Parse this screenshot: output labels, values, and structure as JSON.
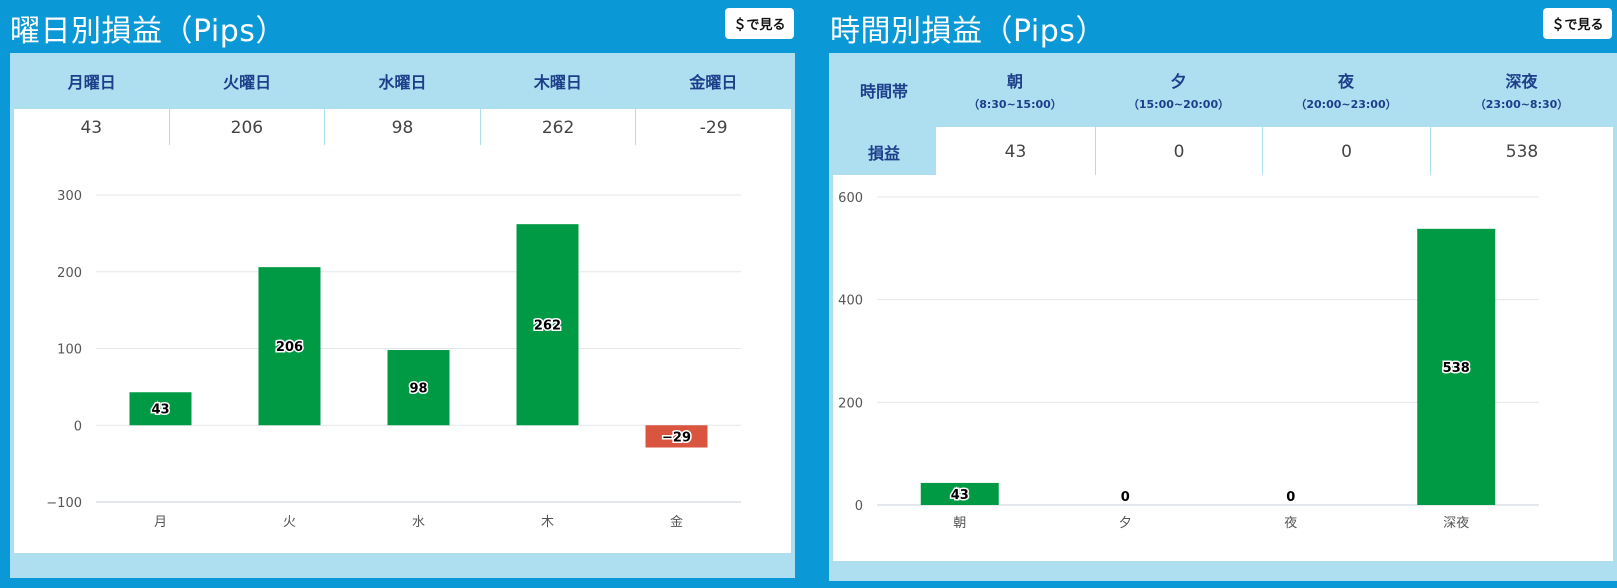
{
  "weekday_panel": {
    "title": "曜日別損益（Pips）",
    "usd_button": "＄で見る",
    "table": {
      "headers": [
        "月曜日",
        "火曜日",
        "水曜日",
        "木曜日",
        "金曜日"
      ],
      "values": [
        "43",
        "206",
        "98",
        "262",
        "-29"
      ]
    }
  },
  "time_panel": {
    "title": "時間別損益（Pips）",
    "usd_button": "＄で見る",
    "table": {
      "corner_label": "時間帯",
      "row_label": "損益",
      "columns": [
        {
          "label": "朝",
          "range": "（8:30~15:00）",
          "value": "43"
        },
        {
          "label": "夕",
          "range": "（15:00~20:00）",
          "value": "0"
        },
        {
          "label": "夜",
          "range": "（20:00~23:00）",
          "value": "0"
        },
        {
          "label": "深夜",
          "range": "（23:00~8:30）",
          "value": "538"
        }
      ]
    }
  },
  "colors": {
    "background": "#0b98d6",
    "card": "#aedff0",
    "positive": "#009944",
    "negative": "#d9553f",
    "header_text": "#1d3f8a"
  },
  "chart_data": [
    {
      "type": "bar",
      "categories": [
        "月",
        "火",
        "水",
        "木",
        "金"
      ],
      "values": [
        43,
        206,
        98,
        262,
        -29
      ],
      "ylim": [
        -100,
        300
      ],
      "yticks": [
        -100,
        0,
        100,
        200,
        300
      ],
      "grid": true,
      "title": "",
      "xlabel": "",
      "ylabel": ""
    },
    {
      "type": "bar",
      "categories": [
        "朝",
        "夕",
        "夜",
        "深夜"
      ],
      "values": [
        43,
        0,
        0,
        538
      ],
      "ylim": [
        0,
        600
      ],
      "yticks": [
        0,
        200,
        400,
        600
      ],
      "grid": true,
      "title": "",
      "xlabel": "",
      "ylabel": ""
    }
  ]
}
